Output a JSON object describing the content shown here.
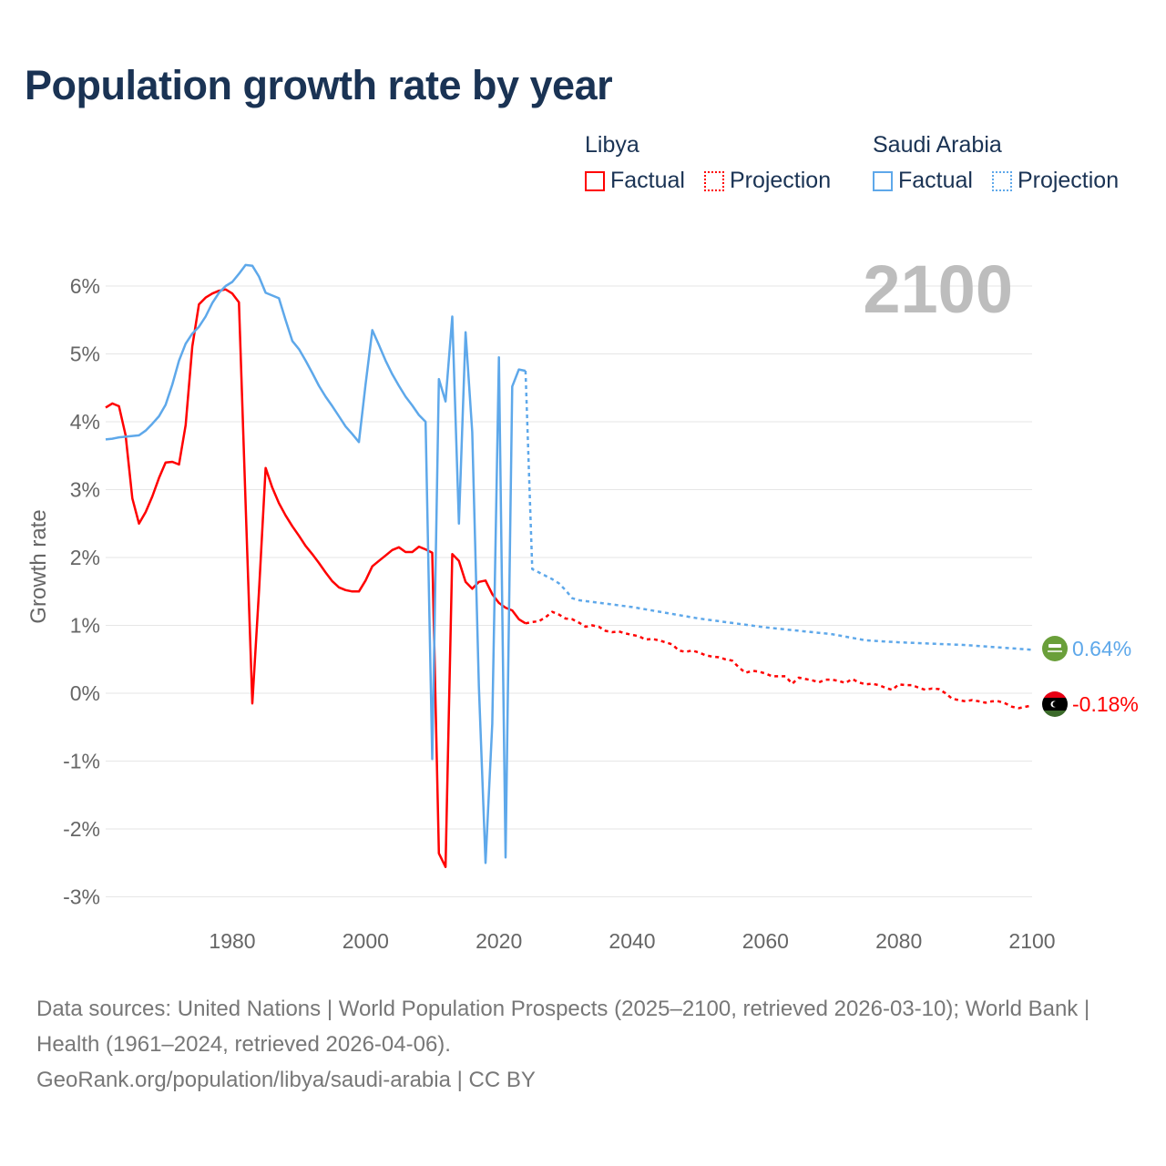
{
  "title": "Population growth rate by year",
  "legend": {
    "groups": [
      {
        "name": "Libya",
        "color": "#ff0000",
        "factual": "Factual",
        "projection": "Projection"
      },
      {
        "name": "Saudi Arabia",
        "color": "#5ea8ea",
        "factual": "Factual",
        "projection": "Projection"
      }
    ]
  },
  "footer": {
    "sources": "Data sources: United Nations | World Population Prospects (2025–2100, retrieved 2026-03-10); World Bank | Health (1961–2024, retrieved 2026-04-06).",
    "credit": "GeoRank.org/population/libya/saudi-arabia | CC BY"
  },
  "chart_data": {
    "type": "line",
    "title": "Population growth rate by year",
    "ylabel": "Growth rate",
    "xlabel": "",
    "year_display": "2100",
    "xlim": [
      1961,
      2100
    ],
    "ylim": [
      -3.3,
      6.6
    ],
    "x_ticks": [
      1980,
      2000,
      2020,
      2040,
      2060,
      2080,
      2100
    ],
    "y_ticks": [
      -3,
      -2,
      -1,
      0,
      1,
      2,
      3,
      4,
      5,
      6
    ],
    "y_tick_labels": [
      "-3%",
      "-2%",
      "-1%",
      "0%",
      "1%",
      "2%",
      "3%",
      "4%",
      "5%",
      "6%"
    ],
    "grid": true,
    "legend_position": "top-right",
    "end_labels": {
      "Libya": "-0.18%",
      "Saudi Arabia": "0.64%"
    },
    "series": [
      {
        "name": "Libya",
        "kind": "Factual",
        "color": "#ff0000",
        "start_year": 1961,
        "values": [
          4.21,
          4.27,
          4.23,
          3.8,
          2.87,
          2.5,
          2.67,
          2.9,
          3.17,
          3.4,
          3.41,
          3.37,
          3.95,
          5.11,
          5.73,
          5.83,
          5.89,
          5.93,
          5.95,
          5.89,
          5.76,
          2.8,
          -0.15,
          1.5,
          3.32,
          3.03,
          2.8,
          2.62,
          2.46,
          2.32,
          2.17,
          2.05,
          1.92,
          1.78,
          1.65,
          1.56,
          1.52,
          1.5,
          1.5,
          1.66,
          1.87,
          1.95,
          2.03,
          2.11,
          2.15,
          2.08,
          2.08,
          2.16,
          2.12,
          2.07,
          -2.36,
          -2.56,
          2.05,
          1.95,
          1.64,
          1.54,
          1.64,
          1.66,
          1.46,
          1.33,
          1.26,
          1.22,
          1.09,
          1.03
        ]
      },
      {
        "name": "Libya",
        "kind": "Projection",
        "color": "#ff0000",
        "start_year": 2024,
        "values": [
          1.03,
          1.05,
          1.06,
          1.12,
          1.2,
          1.16,
          1.1,
          1.09,
          1.04,
          0.98,
          1.0,
          0.98,
          0.92,
          0.9,
          0.91,
          0.88,
          0.86,
          0.84,
          0.79,
          0.8,
          0.78,
          0.75,
          0.72,
          0.63,
          0.61,
          0.63,
          0.6,
          0.56,
          0.54,
          0.53,
          0.5,
          0.48,
          0.38,
          0.3,
          0.33,
          0.32,
          0.29,
          0.25,
          0.25,
          0.25,
          0.14,
          0.23,
          0.21,
          0.19,
          0.16,
          0.2,
          0.2,
          0.18,
          0.15,
          0.21,
          0.16,
          0.13,
          0.14,
          0.12,
          0.08,
          0.05,
          0.13,
          0.12,
          0.12,
          0.08,
          0.05,
          0.07,
          0.06,
          0.0,
          -0.08,
          -0.1,
          -0.12,
          -0.1,
          -0.12,
          -0.14,
          -0.12,
          -0.12,
          -0.15,
          -0.2,
          -0.22,
          -0.2,
          -0.18
        ]
      },
      {
        "name": "Saudi Arabia",
        "kind": "Factual",
        "color": "#5ea8ea",
        "start_year": 1961,
        "values": [
          3.74,
          3.75,
          3.77,
          3.78,
          3.79,
          3.8,
          3.87,
          3.97,
          4.08,
          4.25,
          4.55,
          4.9,
          5.15,
          5.3,
          5.4,
          5.55,
          5.75,
          5.9,
          6.0,
          6.06,
          6.18,
          6.31,
          6.3,
          6.14,
          5.9,
          5.86,
          5.82,
          5.5,
          5.19,
          5.07,
          4.9,
          4.72,
          4.53,
          4.37,
          4.23,
          4.08,
          3.93,
          3.82,
          3.7,
          4.55,
          5.35,
          5.13,
          4.9,
          4.7,
          4.53,
          4.37,
          4.24,
          4.1,
          4.0,
          -0.97,
          4.63,
          4.3,
          5.55,
          2.5,
          5.32,
          3.85,
          0.1,
          -2.5,
          -0.45,
          4.95,
          -2.42,
          4.52,
          4.77,
          4.75
        ]
      },
      {
        "name": "Saudi Arabia",
        "kind": "Projection",
        "color": "#5ea8ea",
        "x": [
          2024,
          2025,
          2026,
          2027,
          2028,
          2029,
          2030,
          2031,
          2032,
          2040,
          2050,
          2060,
          2070,
          2075,
          2080,
          2090,
          2100
        ],
        "values": [
          4.75,
          1.83,
          1.78,
          1.73,
          1.68,
          1.62,
          1.52,
          1.4,
          1.37,
          1.27,
          1.1,
          0.97,
          0.87,
          0.78,
          0.75,
          0.71,
          0.64
        ]
      }
    ]
  }
}
